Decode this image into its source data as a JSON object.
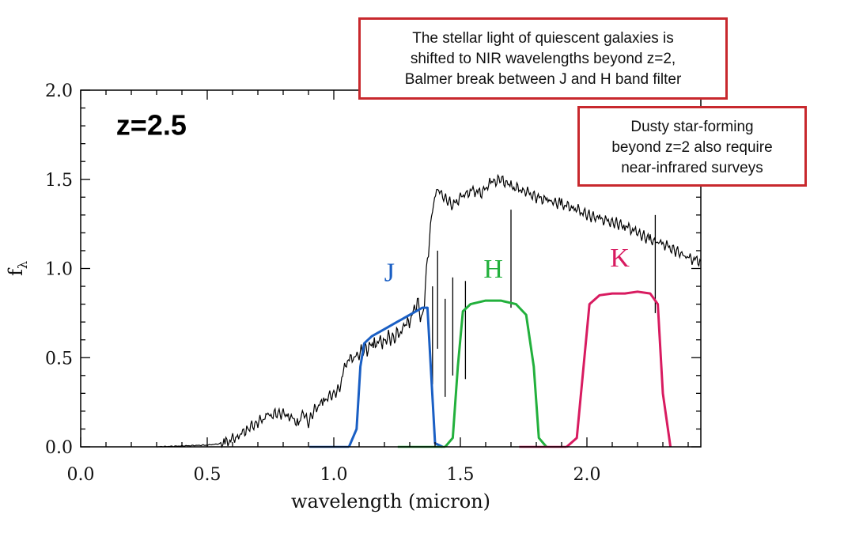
{
  "chart_data": {
    "type": "line",
    "xlabel": "wavelength (micron)",
    "ylabel": "f_λ",
    "ylabel_main": "f",
    "ylabel_sub": "λ",
    "xlim": [
      0.0,
      2.45
    ],
    "ylim": [
      0.0,
      2.0
    ],
    "x_ticks": [
      "0.0",
      "0.5",
      "1.0",
      "1.5",
      "2.0"
    ],
    "y_ticks": [
      "0.0",
      "0.5",
      "1.0",
      "1.5",
      "2.0"
    ],
    "grid": false,
    "series": [
      {
        "type": "line",
        "color": "#000000",
        "x": [
          0.3,
          0.5,
          0.57,
          0.62,
          0.66,
          0.7,
          0.74,
          0.78,
          0.82,
          0.86,
          0.88,
          0.9,
          0.92,
          0.96,
          1.0,
          1.02,
          1.05,
          1.08,
          1.12,
          1.16,
          1.2,
          1.24,
          1.28,
          1.31,
          1.33,
          1.35,
          1.37,
          1.39,
          1.41,
          1.43,
          1.45,
          1.47,
          1.5,
          1.52,
          1.55,
          1.58,
          1.62,
          1.66,
          1.7,
          1.75,
          1.8,
          1.85,
          1.9,
          1.95,
          2.0,
          2.05,
          2.1,
          2.15,
          2.2,
          2.25,
          2.3,
          2.35,
          2.4,
          2.45
        ],
        "y": [
          0.0,
          0.01,
          0.02,
          0.06,
          0.1,
          0.14,
          0.17,
          0.19,
          0.18,
          0.13,
          0.19,
          0.13,
          0.2,
          0.26,
          0.3,
          0.32,
          0.48,
          0.5,
          0.54,
          0.58,
          0.6,
          0.62,
          0.66,
          0.74,
          0.82,
          0.7,
          1.05,
          1.35,
          1.45,
          1.4,
          1.38,
          1.35,
          1.4,
          1.42,
          1.44,
          1.42,
          1.48,
          1.5,
          1.46,
          1.44,
          1.4,
          1.38,
          1.36,
          1.34,
          1.3,
          1.28,
          1.26,
          1.24,
          1.2,
          1.16,
          1.14,
          1.1,
          1.06,
          1.04
        ]
      },
      {
        "name": "J",
        "color": "#1a5fc4",
        "x": [
          1.06,
          1.09,
          1.105,
          1.12,
          1.15,
          1.2,
          1.25,
          1.3,
          1.35,
          1.37,
          1.385,
          1.4,
          1.43
        ],
        "y": [
          0.0,
          0.1,
          0.45,
          0.58,
          0.62,
          0.66,
          0.7,
          0.74,
          0.78,
          0.78,
          0.4,
          0.02,
          0.0
        ]
      },
      {
        "name": "H",
        "color": "#22b03c",
        "x": [
          1.44,
          1.47,
          1.49,
          1.51,
          1.54,
          1.6,
          1.66,
          1.72,
          1.76,
          1.79,
          1.81,
          1.84
        ],
        "y": [
          0.0,
          0.05,
          0.45,
          0.76,
          0.8,
          0.82,
          0.82,
          0.8,
          0.74,
          0.45,
          0.05,
          0.0
        ]
      },
      {
        "name": "K",
        "color": "#d81b60",
        "x": [
          1.92,
          1.96,
          1.99,
          2.01,
          2.05,
          2.1,
          2.15,
          2.2,
          2.25,
          2.28,
          2.3,
          2.33
        ],
        "y": [
          0.0,
          0.05,
          0.5,
          0.8,
          0.85,
          0.86,
          0.86,
          0.87,
          0.86,
          0.8,
          0.3,
          0.0
        ]
      }
    ],
    "labels": [
      {
        "text": "J",
        "color": "#1a5fc4",
        "x": 1.22,
        "y": 0.93
      },
      {
        "text": "H",
        "color": "#22b03c",
        "x": 1.63,
        "y": 0.95
      },
      {
        "text": "K",
        "color": "#d81b60",
        "x": 2.13,
        "y": 1.01
      }
    ],
    "annotation": {
      "text": "z=2.5",
      "x": 0.14,
      "y": 1.75
    }
  },
  "notes": {
    "top": [
      "The stellar light of quiescent galaxies is",
      "shifted to NIR wavelengths beyond z=2,",
      "Balmer break between J and H band filter"
    ],
    "side": [
      "Dusty star-forming",
      "beyond z=2 also require",
      "near-infrared surveys"
    ],
    "border_color": "#c8282d"
  }
}
